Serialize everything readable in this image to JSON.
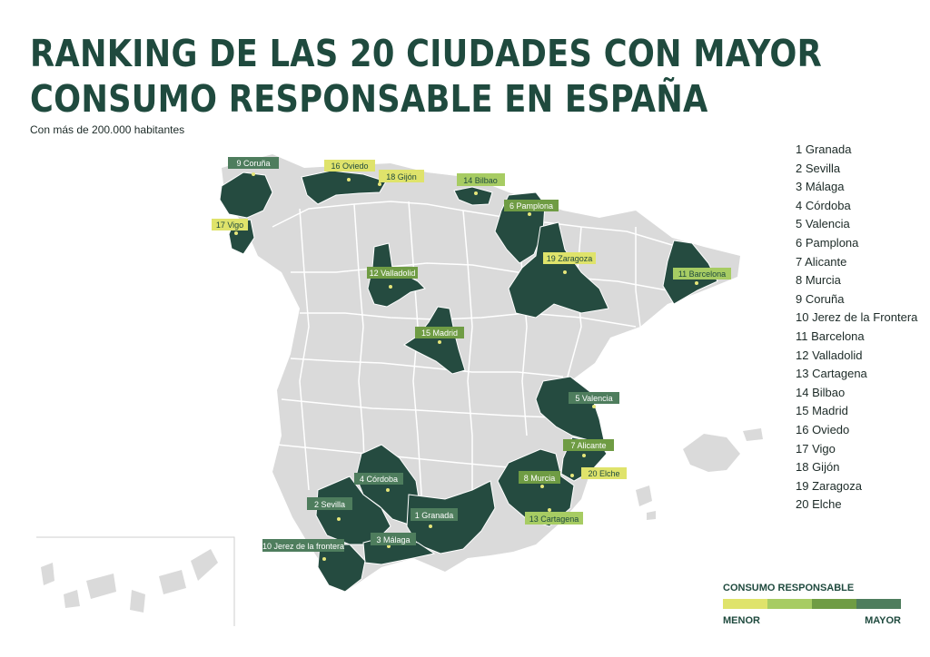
{
  "title_line1": "RANKING DE LAS 20 CIUDADES CON MAYOR",
  "title_line2": "CONSUMO RESPONSABLE EN ESPAÑA",
  "subtitle": "Con más de 200.000 habitantes",
  "ranking": [
    "1 Granada",
    "2 Sevilla",
    "3 Málaga",
    "4 Córdoba",
    "5 Valencia",
    "6 Pamplona",
    "7 Alicante",
    "8 Murcia",
    "9 Coruña",
    "10 Jerez de la Frontera",
    "11 Barcelona",
    "12 Valladolid",
    "13 Cartagena",
    "14 Bilbao",
    "15 Madrid",
    "16 Oviedo",
    "17 Vigo",
    "18 Gijón",
    "19 Zaragoza",
    "20 Elche"
  ],
  "map_labels": [
    {
      "text": "9 Coruña",
      "color": "#4e7d5d"
    },
    {
      "text": "16 Oviedo",
      "color": "#dfe36b"
    },
    {
      "text": "18 Gijón",
      "color": "#dfe36b"
    },
    {
      "text": "14 Bilbao",
      "color": "#a7cc63"
    },
    {
      "text": "6 Pamplona",
      "color": "#6f9c44"
    },
    {
      "text": "17 Vigo",
      "color": "#dfe36b"
    },
    {
      "text": "12 Valladolid",
      "color": "#6f9c44"
    },
    {
      "text": "19 Zaragoza",
      "color": "#dfe36b"
    },
    {
      "text": "11 Barcelona",
      "color": "#a7cc63"
    },
    {
      "text": "15 Madrid",
      "color": "#6f9c44"
    },
    {
      "text": "5 Valencia",
      "color": "#4e7d5d"
    },
    {
      "text": "7 Alicante",
      "color": "#6f9c44"
    },
    {
      "text": "4 Córdoba",
      "color": "#4e7d5d"
    },
    {
      "text": "8 Murcia",
      "color": "#6f9c44"
    },
    {
      "text": "20 Elche",
      "color": "#dfe36b"
    },
    {
      "text": "2 Sevilla",
      "color": "#4e7d5d"
    },
    {
      "text": "1 Granada",
      "color": "#4e7d5d"
    },
    {
      "text": "13 Cartagena",
      "color": "#a7cc63"
    },
    {
      "text": "3 Málaga",
      "color": "#4e7d5d"
    },
    {
      "text": "10 Jerez de la frontera",
      "color": "#4e7d5d"
    }
  ],
  "legend": {
    "title": "CONSUMO RESPONSABLE",
    "low_label": "MENOR",
    "high_label": "MAYOR",
    "colors": [
      "#dfe36b",
      "#a7cc63",
      "#6f9c44",
      "#4e7d5d"
    ]
  },
  "colors": {
    "highlight": "#254b40",
    "land": "#dadada",
    "text": "#1f4a3e"
  }
}
